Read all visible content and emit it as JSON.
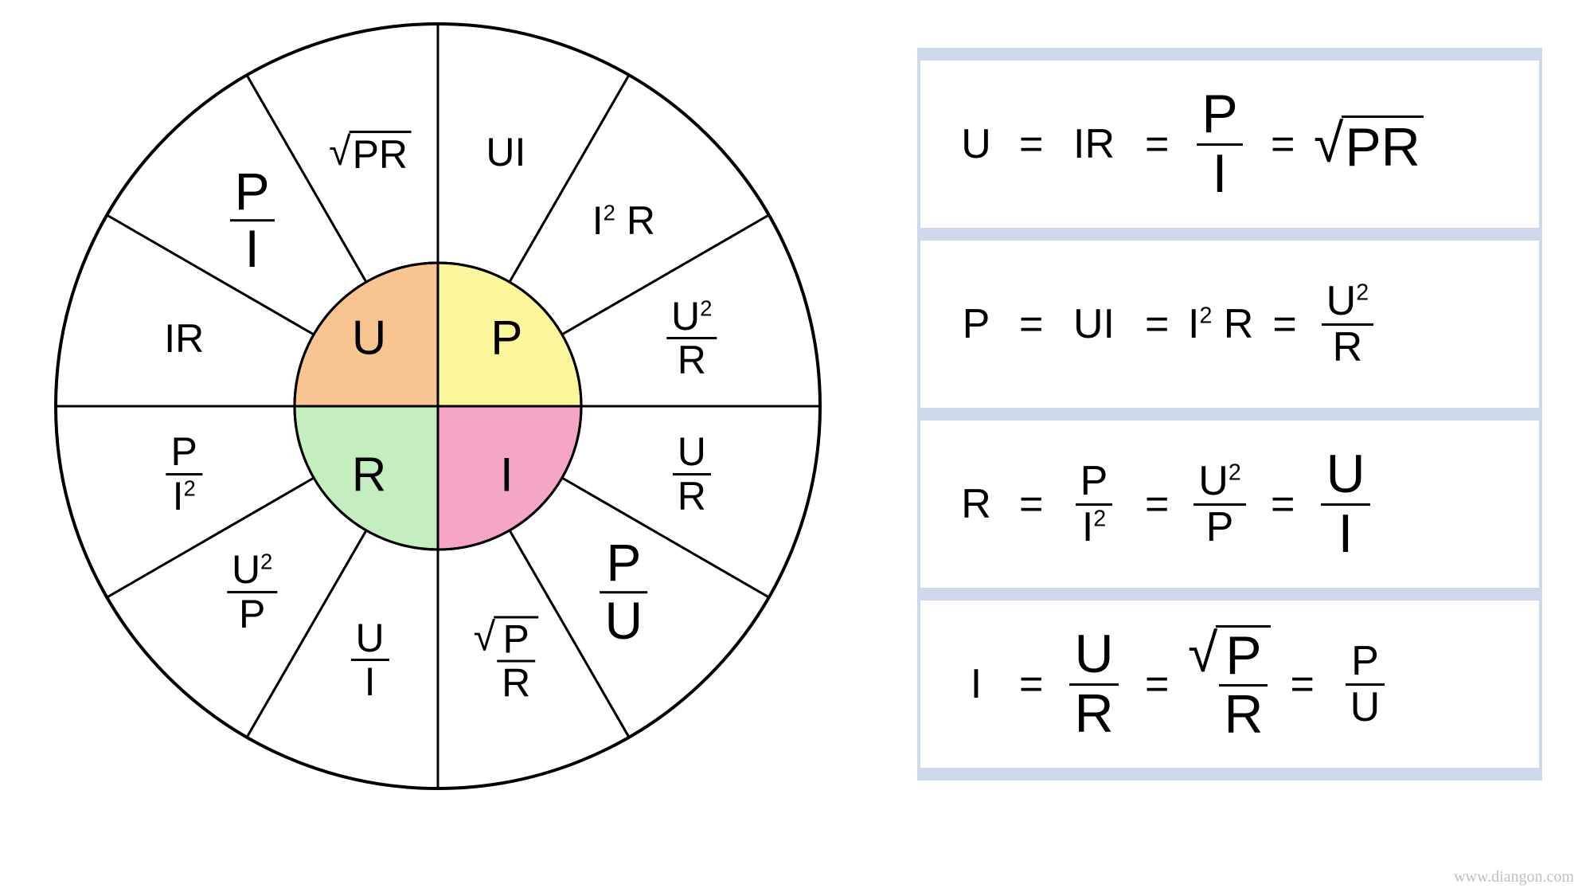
{
  "wheel": {
    "outer_r": 480,
    "inner_r": 180,
    "stroke": "#000000",
    "stroke_w": 3,
    "bg": "#ffffff",
    "core": {
      "U": {
        "label": "U",
        "fill": "#f8c592"
      },
      "P": {
        "label": "P",
        "fill": "#fbf69c"
      },
      "R": {
        "label": "R",
        "fill": "#c4eebf"
      },
      "I": {
        "label": "I",
        "fill": "#f5a6c6"
      }
    },
    "font_core": 60,
    "font_ring": 50,
    "segments": [
      {
        "quadrant": "P",
        "idx": 0,
        "type": "text",
        "value": "UI"
      },
      {
        "quadrant": "P",
        "idx": 1,
        "type": "text",
        "value": "I² R"
      },
      {
        "quadrant": "P",
        "idx": 2,
        "type": "frac",
        "num": "U²",
        "den": "R"
      },
      {
        "quadrant": "I",
        "idx": 0,
        "type": "frac",
        "num": "U",
        "den": "R"
      },
      {
        "quadrant": "I",
        "idx": 1,
        "type": "frac",
        "num": "P",
        "den": "U",
        "big": true
      },
      {
        "quadrant": "I",
        "idx": 2,
        "type": "sqrt_frac",
        "num": "P",
        "den": "R"
      },
      {
        "quadrant": "R",
        "idx": 0,
        "type": "frac",
        "num": "U",
        "den": "I"
      },
      {
        "quadrant": "R",
        "idx": 1,
        "type": "frac",
        "num": "U²",
        "den": "P"
      },
      {
        "quadrant": "R",
        "idx": 2,
        "type": "frac",
        "num": "P",
        "den": "I²"
      },
      {
        "quadrant": "U",
        "idx": 0,
        "type": "text",
        "value": "IR"
      },
      {
        "quadrant": "U",
        "idx": 1,
        "type": "frac",
        "num": "P",
        "den": "I",
        "big": true
      },
      {
        "quadrant": "U",
        "idx": 2,
        "type": "sqrt",
        "value": "PR"
      }
    ]
  },
  "equations": [
    {
      "lhs": "U",
      "terms": [
        {
          "type": "text",
          "value": "IR"
        },
        {
          "type": "frac",
          "num": "P",
          "den": "I",
          "big": true
        },
        {
          "type": "sqrt",
          "value": "PR",
          "big": true
        }
      ]
    },
    {
      "lhs": "P",
      "terms": [
        {
          "type": "text",
          "value": "UI"
        },
        {
          "type": "text",
          "value": "I² R"
        },
        {
          "type": "frac",
          "num": "U²",
          "den": "R"
        }
      ]
    },
    {
      "lhs": "R",
      "terms": [
        {
          "type": "frac",
          "num": "P",
          "den": "I²"
        },
        {
          "type": "frac",
          "num": "U²",
          "den": "P"
        },
        {
          "type": "frac",
          "num": "U",
          "den": "I",
          "big": true
        }
      ]
    },
    {
      "lhs": "I",
      "terms": [
        {
          "type": "frac",
          "num": "U",
          "den": "R",
          "big": true
        },
        {
          "type": "sqrt_frac",
          "num": "P",
          "den": "R",
          "big": true
        },
        {
          "type": "frac",
          "num": "P",
          "den": "U"
        }
      ]
    }
  ],
  "attribution": "www.diangon.com",
  "colors": {
    "box_border": "#cdd9ea",
    "text": "#000000",
    "attr": "#bfbfbf"
  }
}
